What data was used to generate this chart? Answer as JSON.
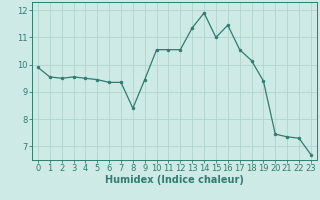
{
  "x": [
    0,
    1,
    2,
    3,
    4,
    5,
    6,
    7,
    8,
    9,
    10,
    11,
    12,
    13,
    14,
    15,
    16,
    17,
    18,
    19,
    20,
    21,
    22,
    23
  ],
  "y": [
    9.9,
    9.55,
    9.5,
    9.55,
    9.5,
    9.45,
    9.35,
    9.35,
    8.4,
    9.45,
    10.55,
    10.55,
    10.55,
    11.35,
    11.9,
    11.0,
    11.45,
    10.55,
    10.15,
    9.4,
    7.45,
    7.35,
    7.3,
    6.7
  ],
  "line_color": "#2e7d6e",
  "marker": "o",
  "marker_size": 2.0,
  "bg_color": "#ceeae6",
  "grid_color": "#b0d4cc",
  "xlabel": "Humidex (Indice chaleur)",
  "xlabel_fontsize": 7,
  "tick_fontsize": 6,
  "yticks": [
    7,
    8,
    9,
    10,
    11,
    12
  ],
  "xticks": [
    0,
    1,
    2,
    3,
    4,
    5,
    6,
    7,
    8,
    9,
    10,
    11,
    12,
    13,
    14,
    15,
    16,
    17,
    18,
    19,
    20,
    21,
    22,
    23
  ],
  "ylim": [
    6.5,
    12.3
  ],
  "xlim": [
    -0.5,
    23.5
  ]
}
